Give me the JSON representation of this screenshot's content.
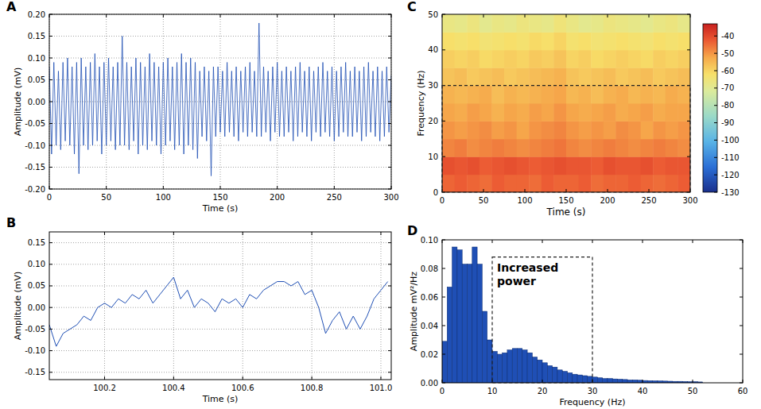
{
  "chart_data": [
    {
      "type": "line",
      "title": "A",
      "x_label": "Time (s)",
      "y_label": "Amplitude (mV)",
      "color": "#1f4fb4",
      "grid": true,
      "xlim": [
        0,
        300
      ],
      "ylim": [
        -0.2,
        0.2
      ],
      "xticks": [
        0,
        50,
        100,
        150,
        200,
        250,
        300
      ],
      "yticks": [
        {
          "value": -0.2,
          "label": "-0.20"
        },
        -0.15,
        {
          "value": -0.1,
          "label": "-0.10"
        },
        -0.05,
        {
          "value": 0,
          "label": "0.00"
        },
        0.05,
        {
          "value": 0.1,
          "label": "0.10"
        },
        0.15,
        {
          "value": 0.2,
          "label": "0.20"
        }
      ],
      "x": [
        0,
        2,
        4,
        6,
        8,
        10,
        12,
        14,
        16,
        18,
        20,
        22,
        24,
        26,
        28,
        30,
        32,
        34,
        36,
        38,
        40,
        42,
        44,
        46,
        48,
        50,
        52,
        54,
        56,
        58,
        60,
        62,
        64,
        66,
        68,
        70,
        72,
        74,
        76,
        78,
        80,
        82,
        84,
        86,
        88,
        90,
        92,
        94,
        96,
        98,
        100,
        102,
        104,
        106,
        108,
        110,
        112,
        114,
        116,
        118,
        120,
        122,
        124,
        126,
        128,
        130,
        132,
        134,
        136,
        138,
        140,
        142,
        144,
        146,
        148,
        150,
        152,
        154,
        156,
        158,
        160,
        162,
        164,
        166,
        168,
        170,
        172,
        174,
        176,
        178,
        180,
        182,
        184,
        186,
        188,
        190,
        192,
        194,
        196,
        198,
        200,
        202,
        204,
        206,
        208,
        210,
        212,
        214,
        216,
        218,
        220,
        222,
        224,
        226,
        228,
        230,
        232,
        234,
        236,
        238,
        240,
        242,
        244,
        246,
        248,
        250,
        252,
        254,
        256,
        258,
        260,
        262,
        264,
        266,
        268,
        270,
        272,
        274,
        276,
        278,
        280,
        282,
        284,
        286,
        288,
        290,
        292,
        294,
        296,
        298,
        300
      ],
      "values": [
        0.08,
        -0.12,
        0.09,
        -0.1,
        0.07,
        -0.11,
        0.09,
        -0.09,
        0.1,
        -0.1,
        0.08,
        -0.12,
        0.09,
        -0.165,
        0.1,
        -0.1,
        0.08,
        -0.11,
        0.09,
        -0.1,
        0.11,
        -0.09,
        0.08,
        -0.12,
        0.09,
        -0.1,
        0.1,
        -0.09,
        0.08,
        -0.11,
        0.09,
        -0.1,
        0.15,
        -0.1,
        0.09,
        -0.11,
        0.08,
        -0.09,
        0.1,
        -0.12,
        0.09,
        -0.1,
        0.08,
        -0.11,
        0.11,
        -0.09,
        0.09,
        -0.1,
        0.08,
        -0.12,
        0.09,
        -0.1,
        0.1,
        -0.09,
        0.08,
        -0.11,
        0.09,
        -0.1,
        0.11,
        -0.12,
        0.09,
        -0.1,
        0.1,
        -0.11,
        0.09,
        -0.13,
        0.07,
        -0.08,
        0.08,
        -0.09,
        0.07,
        -0.17,
        0.08,
        -0.08,
        0.08,
        -0.07,
        0.07,
        -0.08,
        0.09,
        -0.07,
        0.07,
        -0.08,
        0.08,
        -0.09,
        0.07,
        -0.07,
        0.08,
        -0.08,
        0.09,
        -0.07,
        0.07,
        -0.08,
        0.18,
        -0.08,
        0.08,
        -0.07,
        0.07,
        -0.09,
        0.08,
        -0.07,
        0.09,
        -0.08,
        0.07,
        -0.08,
        0.08,
        -0.07,
        0.07,
        -0.09,
        0.08,
        -0.08,
        0.09,
        -0.07,
        0.07,
        -0.08,
        0.08,
        -0.09,
        0.07,
        -0.07,
        0.08,
        -0.08,
        0.09,
        -0.07,
        0.07,
        -0.08,
        0.08,
        -0.09,
        0.07,
        -0.08,
        0.08,
        -0.07,
        0.09,
        -0.08,
        0.07,
        -0.08,
        0.08,
        -0.07,
        0.07,
        -0.09,
        0.08,
        -0.08,
        0.09,
        -0.07,
        0.07,
        -0.08,
        0.08,
        -0.09,
        0.07,
        -0.08,
        0.08,
        -0.07,
        0.06
      ]
    },
    {
      "type": "line",
      "title": "B",
      "x_label": "Time (s)",
      "y_label": "Amplitude (mV)",
      "color": "#1f4fb4",
      "grid": true,
      "xlim": [
        100.04,
        101.03
      ],
      "ylim": [
        -0.167,
        0.175
      ],
      "xticks": [
        100.2,
        100.4,
        100.6,
        100.8,
        {
          "value": 101,
          "label": "101.0"
        }
      ],
      "yticks": [
        -0.15,
        {
          "value": -0.1,
          "label": "-0.10"
        },
        -0.05,
        {
          "value": 0,
          "label": "0.00"
        },
        0.05,
        {
          "value": 0.1,
          "label": "0.10"
        },
        0.15
      ],
      "x": [
        100.04,
        100.06,
        100.08,
        100.1,
        100.12,
        100.14,
        100.16,
        100.18,
        100.2,
        100.22,
        100.24,
        100.26,
        100.28,
        100.3,
        100.32,
        100.34,
        100.36,
        100.38,
        100.4,
        100.42,
        100.44,
        100.46,
        100.48,
        100.5,
        100.52,
        100.54,
        100.56,
        100.58,
        100.6,
        100.62,
        100.64,
        100.66,
        100.68,
        100.7,
        100.72,
        100.74,
        100.76,
        100.78,
        100.8,
        100.82,
        100.84,
        100.86,
        100.88,
        100.9,
        100.92,
        100.94,
        100.96,
        100.98,
        101.0,
        101.02
      ],
      "values": [
        -0.04,
        -0.09,
        -0.06,
        -0.05,
        -0.04,
        -0.02,
        -0.03,
        0.0,
        0.01,
        0.0,
        0.02,
        0.01,
        0.03,
        0.02,
        0.04,
        0.01,
        0.03,
        0.05,
        0.07,
        0.02,
        0.04,
        0.0,
        0.02,
        0.01,
        -0.01,
        0.02,
        0.01,
        0.02,
        0.0,
        0.03,
        0.02,
        0.04,
        0.05,
        0.06,
        0.06,
        0.05,
        0.06,
        0.03,
        0.04,
        0.0,
        -0.06,
        -0.03,
        -0.01,
        -0.05,
        -0.02,
        -0.05,
        -0.02,
        0.02,
        0.04,
        0.06
      ]
    },
    {
      "type": "heatmap",
      "title": "C",
      "x_label": "Time (s)",
      "y_label": "Frequency (Hz)",
      "grid": false,
      "xlim": [
        0,
        300
      ],
      "ylim": [
        0,
        50
      ],
      "xticks": [
        0,
        50,
        100,
        150,
        200,
        250,
        300
      ],
      "yticks": [
        0,
        10,
        20,
        30,
        40,
        50
      ],
      "xbins": [
        0,
        15,
        30,
        45,
        60,
        75,
        90,
        105,
        120,
        135,
        150,
        165,
        180,
        195,
        210,
        225,
        240,
        255,
        270,
        285,
        300
      ],
      "ybins": [
        0,
        5,
        10,
        15,
        20,
        25,
        30,
        35,
        40,
        45,
        50
      ],
      "cells": [
        [
          -44,
          -43,
          -44,
          -45,
          -43,
          -44,
          -44,
          -45,
          -43,
          -44,
          -44,
          -43,
          -45,
          -44,
          -44,
          -43,
          -44,
          -45,
          -44,
          -43
        ],
        [
          -41,
          -42,
          -41,
          -43,
          -42,
          -41,
          -42,
          -43,
          -42,
          -41,
          -42,
          -42,
          -43,
          -41,
          -42,
          -42,
          -41,
          -43,
          -42,
          -42
        ],
        [
          -48,
          -47,
          -49,
          -48,
          -47,
          -48,
          -49,
          -48,
          -47,
          -46,
          -48,
          -49,
          -48,
          -47,
          -48,
          -49,
          -48,
          -47,
          -48,
          -49
        ],
        [
          -50,
          -51,
          -50,
          -49,
          -51,
          -50,
          -52,
          -50,
          -49,
          -48,
          -50,
          -51,
          -50,
          -51,
          -49,
          -50,
          -52,
          -50,
          -51,
          -50
        ],
        [
          -52,
          -53,
          -51,
          -52,
          -54,
          -52,
          -53,
          -51,
          -52,
          -50,
          -52,
          -53,
          -52,
          -51,
          -53,
          -52,
          -51,
          -53,
          -52,
          -52
        ],
        [
          -54,
          -55,
          -54,
          -53,
          -56,
          -54,
          -55,
          -54,
          -53,
          -52,
          -55,
          -54,
          -56,
          -54,
          -53,
          -55,
          -54,
          -55,
          -53,
          -54
        ],
        [
          -57,
          -56,
          -58,
          -57,
          -56,
          -58,
          -57,
          -56,
          -55,
          -54,
          -57,
          -58,
          -57,
          -56,
          -58,
          -57,
          -56,
          -58,
          -57,
          -56
        ],
        [
          -59,
          -60,
          -59,
          -61,
          -60,
          -59,
          -60,
          -58,
          -59,
          -57,
          -60,
          -59,
          -61,
          -60,
          -59,
          -60,
          -61,
          -59,
          -60,
          -59
        ],
        [
          -62,
          -63,
          -62,
          -64,
          -63,
          -62,
          -63,
          -61,
          -62,
          -60,
          -63,
          -62,
          -64,
          -63,
          -62,
          -63,
          -64,
          -62,
          -63,
          -62
        ],
        [
          -67,
          -68,
          -66,
          -69,
          -67,
          -68,
          -66,
          -67,
          -68,
          -65,
          -67,
          -69,
          -68,
          -66,
          -67,
          -68,
          -69,
          -67,
          -66,
          -68
        ]
      ],
      "colorbar": {
        "lim": [
          -130,
          -33
        ],
        "ticks": [
          -40,
          -50,
          -60,
          -70,
          -80,
          -90,
          -100,
          -110,
          -120,
          -130
        ]
      },
      "annotations": [
        {
          "x": [
            0,
            300
          ],
          "y": [
            0,
            30
          ]
        }
      ]
    },
    {
      "type": "histogram",
      "title": "D",
      "x_label": "Frequency (Hz)",
      "y_label": "Amplitude mV²/Hz",
      "color": "#1f4fb5",
      "grid": false,
      "xlim": [
        0,
        60
      ],
      "ylim": [
        0,
        0.1
      ],
      "xticks": [
        0,
        10,
        20,
        30,
        40,
        50,
        60
      ],
      "yticks": [
        {
          "value": 0,
          "label": "0.00"
        },
        0.02,
        0.04,
        0.06,
        0.08,
        {
          "value": 0.1,
          "label": "0.10"
        }
      ],
      "bins": [
        0,
        1,
        2,
        3,
        4,
        5,
        6,
        7,
        8,
        9,
        10,
        11,
        12,
        13,
        14,
        15,
        16,
        17,
        18,
        19,
        20,
        21,
        22,
        23,
        24,
        25,
        26,
        27,
        28,
        29,
        30,
        31,
        32,
        33,
        34,
        35,
        36,
        37,
        38,
        39,
        40,
        41,
        42,
        43,
        44,
        45,
        46,
        47,
        48,
        49,
        50,
        51,
        52
      ],
      "values": [
        0.029,
        0.067,
        0.095,
        0.093,
        0.083,
        0.083,
        0.095,
        0.083,
        0.05,
        0.03,
        0.022,
        0.02,
        0.021,
        0.023,
        0.024,
        0.024,
        0.023,
        0.021,
        0.018,
        0.016,
        0.014,
        0.012,
        0.011,
        0.009,
        0.008,
        0.007,
        0.006,
        0.0055,
        0.005,
        0.0045,
        0.004,
        0.0035,
        0.003,
        0.003,
        0.0027,
        0.0025,
        0.0023,
        0.002,
        0.002,
        0.0018,
        0.0016,
        0.0015,
        0.0014,
        0.0013,
        0.0012,
        0.0011,
        0.001,
        0.001,
        0.0009,
        0.0008,
        0.0008,
        0.0006
      ],
      "annotations": [
        {
          "text": "Increased power",
          "x": [
            10,
            30
          ],
          "y": [
            0,
            0.088
          ]
        }
      ]
    }
  ]
}
